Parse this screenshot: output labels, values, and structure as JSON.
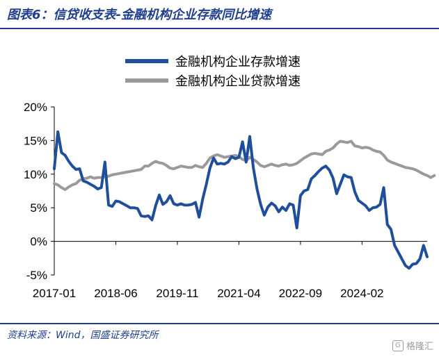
{
  "header": {
    "title": "图表6：信贷收支表-金融机构企业存款同比增速"
  },
  "source": "资料来源：Wind，国盛证券研究所",
  "watermark": {
    "text": "格隆汇",
    "badge": "G"
  },
  "chart_data": {
    "type": "line",
    "title": "",
    "xlabel": "",
    "ylabel": "",
    "ylim": [
      -5,
      20
    ],
    "y_ticks": [
      "-5%",
      "0%",
      "5%",
      "10%",
      "15%",
      "20%"
    ],
    "y_tick_values": [
      -5,
      0,
      5,
      10,
      15,
      20
    ],
    "x_tick_labels": [
      "2017-01",
      "2018-06",
      "2019-11",
      "2021-04",
      "2022-09",
      "2024-02"
    ],
    "x_start": "2017-01",
    "x_end": "2025-05",
    "legend_position": "top-right",
    "grid": false,
    "series": [
      {
        "name": "金融机构企业存款增速",
        "color": "#1f4e9c",
        "values": [
          10.8,
          16.3,
          13.2,
          12.8,
          11.9,
          11.2,
          10.7,
          10.8,
          9.0,
          8.8,
          8.5,
          8.2,
          7.8,
          8.0,
          11.8,
          5.4,
          5.2,
          6.0,
          5.9,
          5.6,
          5.3,
          5.0,
          5.0,
          4.9,
          3.8,
          3.7,
          3.8,
          3.2,
          5.3,
          6.9,
          5.5,
          5.9,
          6.8,
          5.6,
          5.4,
          5.6,
          5.4,
          5.4,
          5.5,
          5.8,
          3.6,
          6.3,
          8.5,
          10.9,
          12.4,
          11.5,
          11.6,
          11.5,
          11.8,
          12.6,
          12.3,
          12.5,
          14.8,
          11.8,
          15.6,
          10.9,
          7.8,
          5.5,
          3.9,
          5.1,
          5.7,
          5.3,
          4.4,
          5.1,
          4.6,
          5.6,
          5.4,
          2.0,
          6.8,
          7.5,
          7.7,
          9.3,
          9.8,
          10.4,
          10.9,
          11.2,
          10.6,
          9.4,
          7.1,
          8.5,
          9.9,
          9.6,
          9.5,
          7.4,
          6.1,
          5.7,
          5.3,
          4.6,
          5.0,
          5.1,
          5.5,
          8.0,
          2.5,
          1.8,
          -0.6,
          -1.6,
          -2.6,
          -3.6,
          -4.0,
          -3.4,
          -3.3,
          -2.6,
          -0.6,
          -2.3
        ]
      },
      {
        "name": "金融机构企业贷款增速",
        "color": "#9a9a9a",
        "values": [
          8.6,
          8.4,
          8.0,
          7.7,
          8.1,
          8.4,
          8.6,
          9.1,
          9.3,
          9.4,
          9.6,
          9.4,
          9.5,
          9.5,
          9.6,
          9.7,
          9.9,
          10.0,
          10.1,
          10.2,
          10.3,
          10.4,
          10.5,
          10.6,
          10.7,
          11.2,
          11.2,
          11.6,
          11.9,
          11.7,
          11.6,
          11.3,
          10.9,
          10.8,
          11.0,
          11.2,
          11.1,
          11.0,
          11.0,
          11.3,
          11.1,
          11.0,
          11.6,
          12.4,
          12.7,
          12.9,
          12.7,
          12.5,
          12.6,
          12.7,
          12.8,
          12.6,
          12.2,
          12.0,
          12.5,
          12.2,
          11.8,
          11.3,
          11.1,
          11.3,
          11.5,
          11.3,
          11.2,
          11.4,
          11.5,
          11.3,
          11.4,
          11.6,
          12.0,
          12.4,
          12.7,
          13.0,
          13.1,
          13.0,
          12.9,
          13.4,
          13.6,
          13.9,
          14.5,
          14.9,
          14.8,
          14.7,
          14.9,
          14.2,
          14.1,
          13.9,
          14.0,
          13.9,
          13.6,
          13.4,
          13.3,
          12.8,
          12.1,
          11.8,
          11.6,
          11.4,
          11.2,
          11.0,
          10.9,
          10.8,
          10.6,
          10.3,
          10.0,
          9.8,
          9.5,
          9.8
        ]
      }
    ]
  }
}
